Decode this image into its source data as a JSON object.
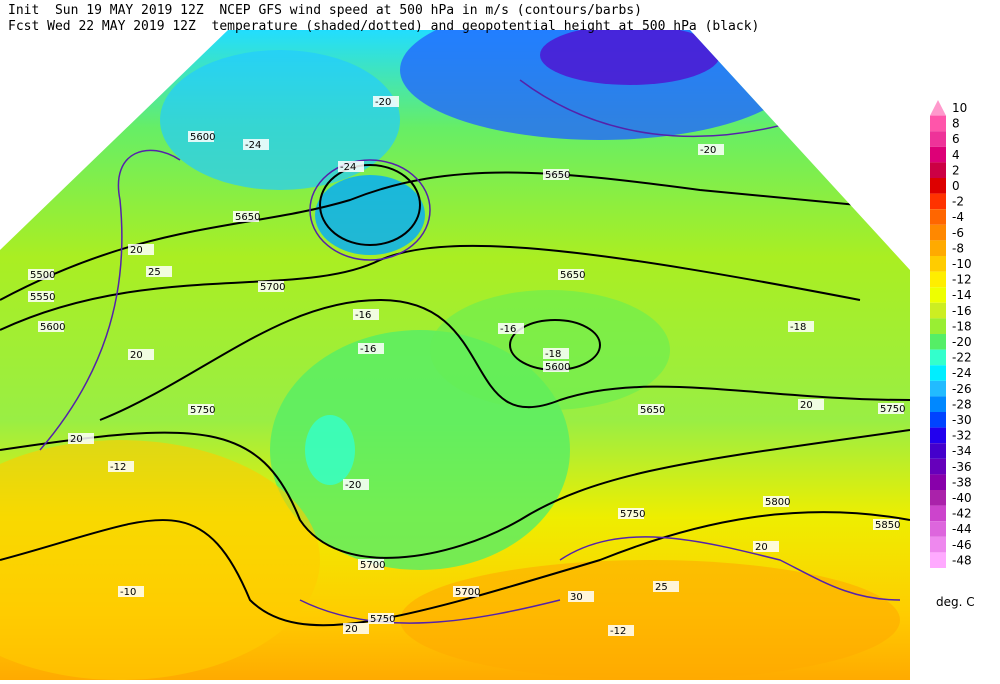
{
  "header": {
    "line1": "Init  Sun 19 MAY 2019 12Z  NCEP GFS wind speed at 500 hPa in m/s (contours/barbs)",
    "line2": "Fcst Wed 22 MAY 2019 12Z  temperature (shaded/dotted) and geopotential height at 500 hPa (black)"
  },
  "colorbar": {
    "unit": "deg. C",
    "levels": [
      10,
      8,
      6,
      4,
      2,
      0,
      -2,
      -4,
      -6,
      -8,
      -10,
      -12,
      -14,
      -16,
      -18,
      -20,
      -22,
      -24,
      -26,
      -28,
      -30,
      -32,
      -34,
      -36,
      -38,
      -40,
      -42,
      -44,
      -46,
      -48
    ],
    "colors": [
      "#ff99cc",
      "#ff55aa",
      "#ee3399",
      "#dd0077",
      "#cc0044",
      "#dd0000",
      "#ff3300",
      "#ff6600",
      "#ff8800",
      "#ffaa00",
      "#ffcc00",
      "#ffee00",
      "#eeff00",
      "#ccee22",
      "#99ee33",
      "#55ee66",
      "#33ffcc",
      "#00eeff",
      "#22bbff",
      "#0088ff",
      "#0044ff",
      "#2200ee",
      "#4400cc",
      "#6600bb",
      "#8800aa",
      "#aa22aa",
      "#cc44cc",
      "#dd66dd",
      "#ee88ee",
      "#ffaaff"
    ]
  },
  "map_labels": [
    "5600",
    "5650",
    "5500",
    "5550",
    "5600",
    "5650",
    "5700",
    "5750",
    "5650",
    "5600",
    "5650",
    "5700",
    "5750",
    "5800",
    "5850",
    "5750",
    "5700",
    "5750",
    "-24",
    "-24",
    "-20",
    "-20",
    "-18",
    "-16",
    "-16",
    "-18",
    "-12",
    "-10",
    "-12",
    "-20",
    "-16",
    "20",
    "25",
    "20",
    "20",
    "20",
    "25",
    "30",
    "20",
    "20"
  ]
}
